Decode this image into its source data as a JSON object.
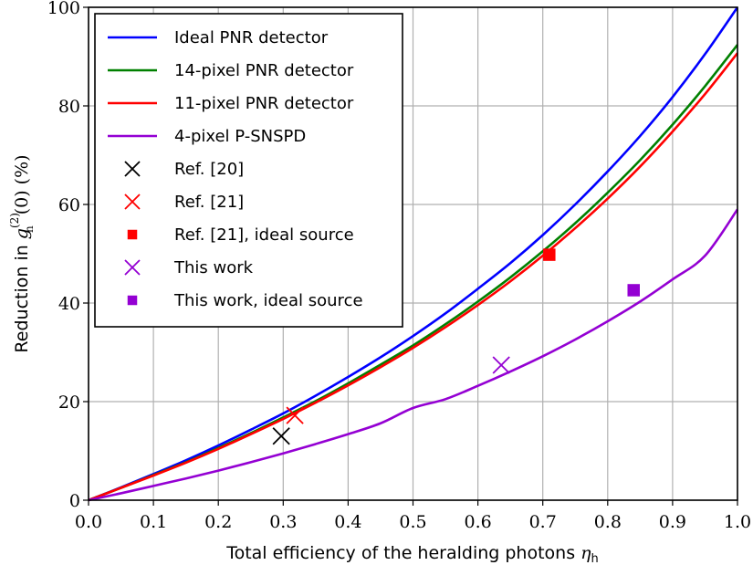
{
  "chart_data": {
    "type": "line",
    "title": "",
    "xlabel": "Total efficiency of the heralding photons η_h",
    "ylabel": "Reduction in g_h^(2)(0) (%)",
    "xlim": [
      0.0,
      1.0
    ],
    "ylim": [
      0,
      100
    ],
    "xticks": [
      "0.0",
      "0.1",
      "0.2",
      "0.3",
      "0.4",
      "0.5",
      "0.6",
      "0.7",
      "0.8",
      "0.9",
      "1.0"
    ],
    "yticks": [
      "0",
      "20",
      "40",
      "60",
      "80",
      "100"
    ],
    "grid": true,
    "legend_position": "upper left",
    "x": [
      0.0,
      0.05,
      0.1,
      0.15,
      0.2,
      0.25,
      0.3,
      0.35,
      0.4,
      0.45,
      0.5,
      0.55,
      0.6,
      0.65,
      0.7,
      0.75,
      0.8,
      0.85,
      0.9,
      0.95,
      1.0
    ],
    "series": [
      {
        "name": "Ideal PNR detector",
        "color": "#0000ff",
        "values": [
          0,
          2.6,
          5.3,
          8.1,
          11.1,
          14.3,
          17.6,
          21.2,
          25.0,
          29.0,
          33.3,
          37.9,
          42.9,
          48.1,
          53.8,
          60.0,
          66.7,
          73.9,
          81.8,
          90.5,
          100.0
        ]
      },
      {
        "name": "14-pixel PNR detector",
        "color": "#008000",
        "values": [
          0,
          2.5,
          5.1,
          7.7,
          10.6,
          13.6,
          16.8,
          20.1,
          23.7,
          27.5,
          31.4,
          35.7,
          40.3,
          45.2,
          50.5,
          56.2,
          62.4,
          69.0,
          76.2,
          84.0,
          92.4
        ]
      },
      {
        "name": "11-pixel PNR detector",
        "color": "#ff0000",
        "values": [
          0,
          2.5,
          5.0,
          7.6,
          10.4,
          13.4,
          16.5,
          19.8,
          23.3,
          27.0,
          30.9,
          35.1,
          39.6,
          44.4,
          49.6,
          55.2,
          61.2,
          67.7,
          74.8,
          82.4,
          90.7
        ]
      },
      {
        "name": "4-pixel P-SNSPD",
        "color": "#9400d3",
        "values": [
          0,
          1.4,
          2.9,
          4.4,
          6.0,
          7.7,
          9.5,
          11.4,
          13.4,
          15.6,
          18.7,
          20.5,
          23.2,
          26.1,
          29.2,
          32.6,
          36.3,
          40.3,
          44.8,
          49.6,
          59.0
        ]
      }
    ],
    "markers": [
      {
        "name": "Ref. [20]",
        "shape": "x",
        "color": "#000000",
        "x": 0.297,
        "y": 13.0
      },
      {
        "name": "Ref. [21]",
        "shape": "x",
        "color": "#ff0000",
        "x": 0.318,
        "y": 17.2
      },
      {
        "name": "Ref. [21], ideal source",
        "shape": "square",
        "color": "#ff0000",
        "x": 0.71,
        "y": 49.8
      },
      {
        "name": "This work",
        "shape": "x",
        "color": "#9400d3",
        "x": 0.636,
        "y": 27.4
      },
      {
        "name": "This work, ideal source",
        "shape": "square",
        "color": "#9400d3",
        "x": 0.84,
        "y": 42.6
      }
    ]
  },
  "axis_text": {
    "xlabel_main": "Total efficiency of the heralding photons ",
    "xlabel_sym": "η",
    "xlabel_sub": "h",
    "ylabel_pre": "Reduction in ",
    "ylabel_g": "g",
    "ylabel_sup": "(2)",
    "ylabel_sub": "h",
    "ylabel_post": "(0) (%)"
  }
}
